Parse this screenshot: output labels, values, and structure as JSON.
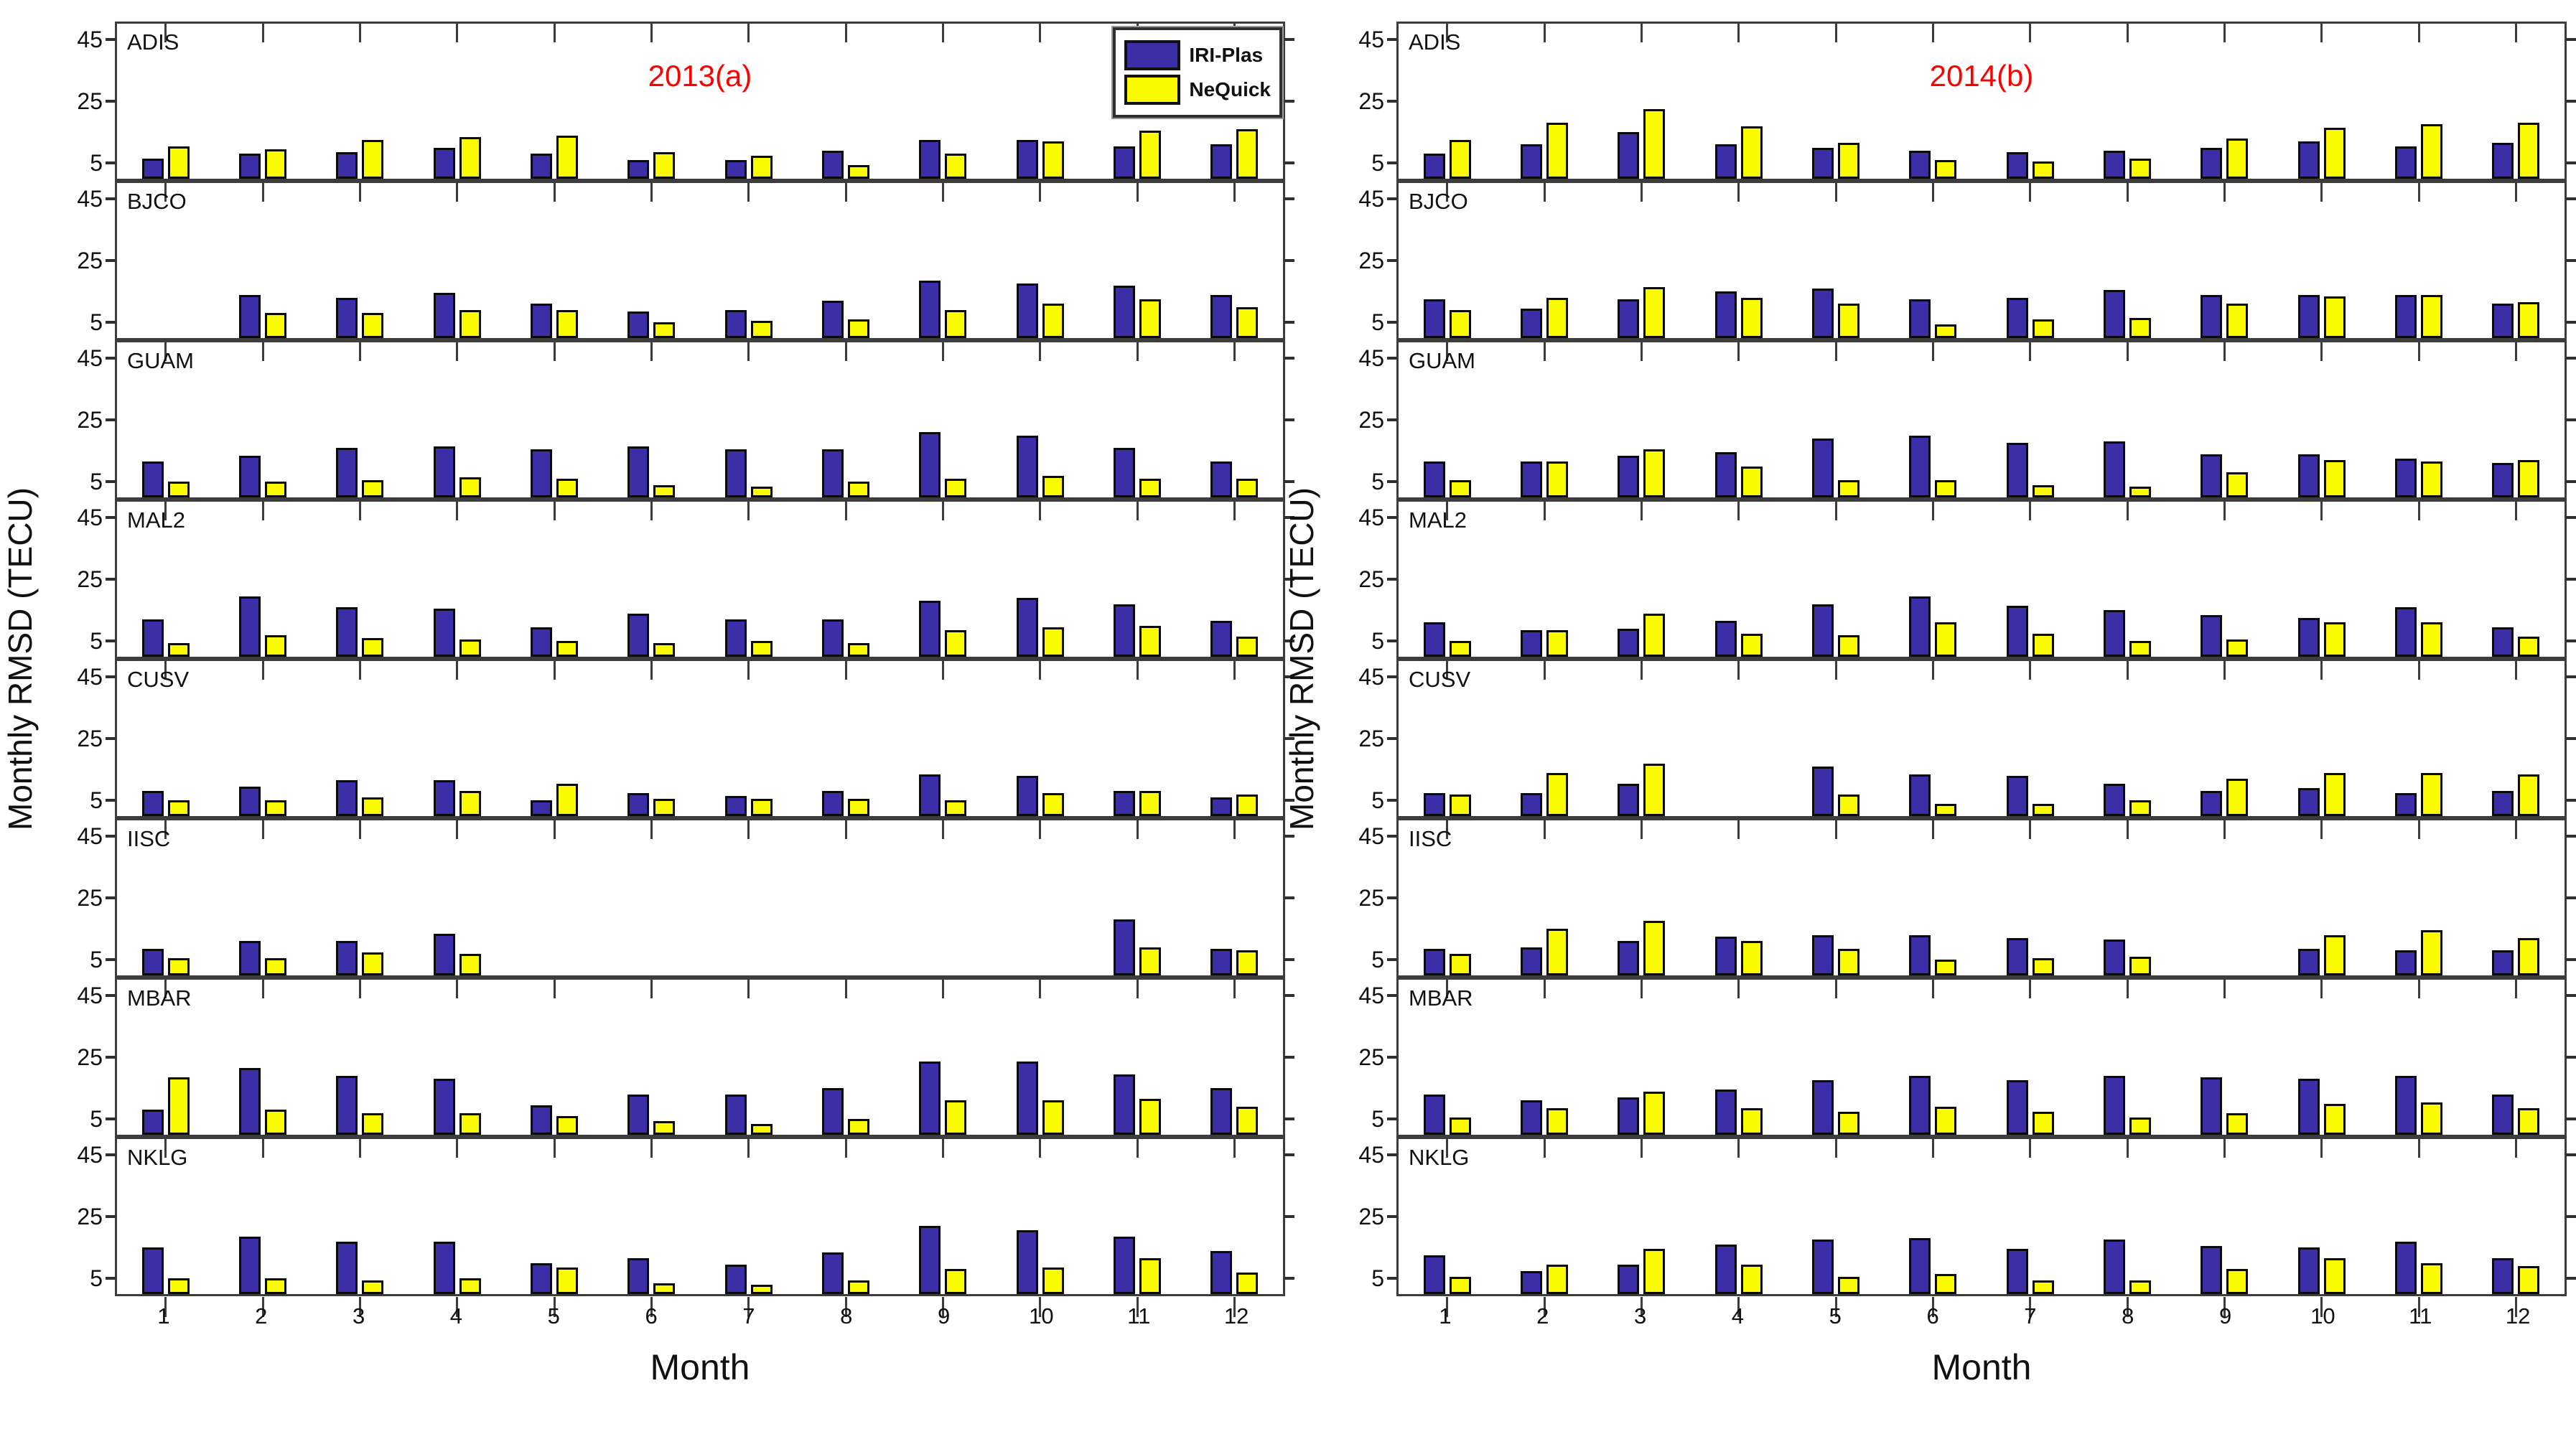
{
  "chart_data": {
    "type": "bar",
    "categories": [
      "1",
      "2",
      "3",
      "4",
      "5",
      "6",
      "7",
      "8",
      "9",
      "10",
      "11",
      "12"
    ],
    "xlabel": "Month",
    "ylabel": "Monthly RMSD (TECU)",
    "ylim": [
      0,
      50
    ],
    "yticks": [
      5,
      25,
      45
    ],
    "grid": false,
    "legend_position": "top-right of left panel",
    "title_color": "#ff0000",
    "frame_color": "#3d3d3d",
    "series": [
      {
        "name": "IRI-Plas",
        "color": "#3b2ea6"
      },
      {
        "name": "NeQuick",
        "color": "#fbfb00"
      }
    ],
    "panels": [
      {
        "title": "2013(a)",
        "stations": [
          {
            "name": "ADIS",
            "iri_plas": [
              6.5,
              8,
              8.5,
              10,
              8,
              6,
              6,
              9,
              12.5,
              12.5,
              10.5,
              11
            ],
            "nequick": [
              10.5,
              9.5,
              12.5,
              13.5,
              14,
              8.5,
              7.5,
              4.5,
              8,
              12,
              15.5,
              16
            ]
          },
          {
            "name": "BJCO",
            "iri_plas": [
              0,
              14,
              13,
              14.5,
              11,
              8.5,
              9,
              12,
              18.5,
              17.5,
              17,
              14
            ],
            "nequick": [
              0,
              8,
              8,
              9,
              9,
              5,
              5.5,
              6,
              9,
              11,
              12.5,
              10
            ]
          },
          {
            "name": "GUAM",
            "iri_plas": [
              11.5,
              13.5,
              16,
              16.5,
              15.5,
              16.5,
              15.5,
              15.5,
              21,
              20,
              16,
              11.5
            ],
            "nequick": [
              5,
              5,
              5.5,
              6.5,
              6,
              4,
              3.5,
              5,
              6,
              7,
              6,
              6
            ]
          },
          {
            "name": "MAL2",
            "iri_plas": [
              12,
              19.5,
              16,
              15.5,
              9.5,
              14,
              12,
              12,
              18,
              19,
              17,
              11.5
            ],
            "nequick": [
              4.5,
              7,
              6,
              5.5,
              5,
              4.5,
              5,
              4.5,
              8.5,
              9.5,
              10,
              6.5
            ]
          },
          {
            "name": "CUSV",
            "iri_plas": [
              8,
              9.5,
              11.5,
              11.5,
              5,
              7.5,
              6.5,
              8,
              13.5,
              13,
              8,
              6
            ],
            "nequick": [
              5,
              5,
              6,
              8,
              10.5,
              5.5,
              5.5,
              5.5,
              5,
              7.5,
              8,
              7
            ]
          },
          {
            "name": "IISC",
            "iri_plas": [
              8.5,
              11,
              11,
              13.5,
              0,
              0,
              0,
              0,
              0,
              0,
              18,
              8.5
            ],
            "nequick": [
              5.5,
              5.5,
              7.5,
              7,
              0,
              0,
              0,
              0,
              0,
              0,
              9,
              8
            ]
          },
          {
            "name": "MBAR",
            "iri_plas": [
              8,
              21.5,
              19,
              18,
              9.5,
              13,
              13,
              15,
              23.5,
              23.5,
              19.5,
              15
            ],
            "nequick": [
              18.5,
              8,
              7,
              7,
              6,
              4.5,
              3.5,
              5,
              11,
              11,
              11.5,
              9
            ]
          },
          {
            "name": "NKLG",
            "iri_plas": [
              15,
              18.5,
              17,
              17,
              10,
              11.5,
              9.5,
              13.5,
              22,
              20.5,
              18.5,
              14
            ],
            "nequick": [
              5,
              5,
              4.5,
              5,
              8.5,
              3.5,
              3,
              4.5,
              8,
              8.5,
              11.5,
              7
            ]
          }
        ]
      },
      {
        "title": "2014(b)",
        "stations": [
          {
            "name": "ADIS",
            "iri_plas": [
              8,
              11,
              15,
              11,
              10,
              9,
              8.5,
              9,
              10,
              12,
              10.5,
              11.5
            ],
            "nequick": [
              12.5,
              18,
              22.5,
              17,
              11.5,
              6,
              5.5,
              6.5,
              13,
              16.5,
              17.5,
              18
            ]
          },
          {
            "name": "BJCO",
            "iri_plas": [
              12.5,
              9.5,
              12.5,
              15,
              16,
              12.5,
              13,
              15.5,
              14,
              14,
              14,
              11
            ],
            "nequick": [
              9,
              13,
              16.5,
              13,
              11,
              4.5,
              6,
              6.5,
              11,
              13.5,
              14,
              11.5
            ]
          },
          {
            "name": "GUAM",
            "iri_plas": [
              11.5,
              11.5,
              13.5,
              14.5,
              19,
              20,
              17.5,
              18,
              14,
              14,
              12.5,
              11
            ],
            "nequick": [
              5.5,
              11.5,
              15.5,
              10,
              5.5,
              5.5,
              4,
              3.5,
              8,
              12,
              11.5,
              12
            ]
          },
          {
            "name": "MAL2",
            "iri_plas": [
              11,
              8.5,
              9,
              11.5,
              17,
              19.5,
              16.5,
              15,
              13.5,
              12.5,
              16,
              9.5
            ],
            "nequick": [
              5,
              8.5,
              14,
              7.5,
              7,
              11,
              7.5,
              5,
              5.5,
              11,
              11,
              6.5
            ]
          },
          {
            "name": "CUSV",
            "iri_plas": [
              7.5,
              7.5,
              10.5,
              0,
              16,
              13.5,
              13,
              10.5,
              8,
              9,
              7.5,
              8
            ],
            "nequick": [
              7,
              14,
              17,
              0,
              7,
              4,
              4,
              5,
              12,
              14,
              14,
              13.5
            ]
          },
          {
            "name": "IISC",
            "iri_plas": [
              8.5,
              9,
              11,
              12.5,
              13,
              13,
              12,
              11.5,
              0,
              8.5,
              8,
              8
            ],
            "nequick": [
              7,
              15,
              17.5,
              11,
              8.5,
              5,
              5.5,
              6,
              0,
              13,
              14.5,
              12
            ]
          },
          {
            "name": "MBAR",
            "iri_plas": [
              13,
              11,
              12,
              14.5,
              17.5,
              19,
              17.5,
              19,
              18.5,
              18,
              19,
              13
            ],
            "nequick": [
              5.5,
              8.5,
              14,
              8.5,
              7.5,
              9,
              7.5,
              5.5,
              7,
              10,
              10.5,
              8.5
            ]
          },
          {
            "name": "NKLG",
            "iri_plas": [
              12.5,
              7.5,
              9.5,
              16,
              17.5,
              18,
              14.5,
              17.5,
              15.5,
              15,
              17,
              11.5
            ],
            "nequick": [
              5.5,
              9.5,
              14.5,
              9.5,
              5.5,
              6.5,
              4.5,
              4.5,
              8,
              11.5,
              10,
              9
            ]
          }
        ]
      }
    ]
  }
}
